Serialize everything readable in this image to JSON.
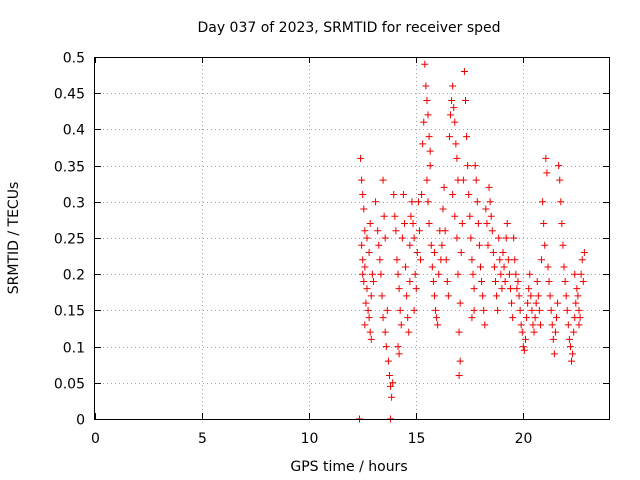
{
  "chart_data": {
    "type": "scatter",
    "title": "Day 037 of 2023, SRMTID for receiver sped",
    "xlabel": "GPS time / hours",
    "ylabel": "SRMTID / TECUs",
    "xlim": [
      0,
      24
    ],
    "ylim": [
      0,
      0.5
    ],
    "xticks": [
      0,
      5,
      10,
      15,
      20
    ],
    "yticks": [
      0,
      0.05,
      0.1,
      0.15,
      0.2,
      0.25,
      0.3,
      0.35,
      0.4,
      0.45,
      0.5
    ],
    "xtick_labels": [
      "0",
      "5",
      "10",
      "15",
      "20"
    ],
    "ytick_labels": [
      "0",
      "0.05",
      "0.1",
      "0.15",
      "0.2",
      "0.25",
      "0.3",
      "0.35",
      "0.4",
      "0.45",
      "0.5"
    ],
    "grid": true,
    "marker": "+",
    "color": "#ee0000",
    "series": [
      {
        "name": "SRMTID",
        "points": [
          [
            12.35,
            0.0
          ],
          [
            13.8,
            0.0
          ],
          [
            12.4,
            0.36
          ],
          [
            12.45,
            0.33
          ],
          [
            12.5,
            0.31
          ],
          [
            12.55,
            0.29
          ],
          [
            12.6,
            0.26
          ],
          [
            12.45,
            0.24
          ],
          [
            12.5,
            0.22
          ],
          [
            12.6,
            0.21
          ],
          [
            12.55,
            0.19
          ],
          [
            12.7,
            0.18
          ],
          [
            12.65,
            0.16
          ],
          [
            12.75,
            0.15
          ],
          [
            12.8,
            0.14
          ],
          [
            12.85,
            0.12
          ],
          [
            12.9,
            0.11
          ],
          [
            12.7,
            0.25
          ],
          [
            12.8,
            0.23
          ],
          [
            12.9,
            0.17
          ],
          [
            12.95,
            0.2
          ],
          [
            13.0,
            0.19
          ],
          [
            12.85,
            0.27
          ],
          [
            12.5,
            0.2
          ],
          [
            12.6,
            0.13
          ],
          [
            13.1,
            0.3
          ],
          [
            13.2,
            0.26
          ],
          [
            13.25,
            0.24
          ],
          [
            13.3,
            0.22
          ],
          [
            13.35,
            0.2
          ],
          [
            13.4,
            0.17
          ],
          [
            13.45,
            0.33
          ],
          [
            13.5,
            0.28
          ],
          [
            13.45,
            0.14
          ],
          [
            13.55,
            0.12
          ],
          [
            13.6,
            0.1
          ],
          [
            13.7,
            0.08
          ],
          [
            13.75,
            0.06
          ],
          [
            13.8,
            0.045
          ],
          [
            13.85,
            0.03
          ],
          [
            13.9,
            0.05
          ],
          [
            13.65,
            0.15
          ],
          [
            13.55,
            0.25
          ],
          [
            13.95,
            0.31
          ],
          [
            14.0,
            0.28
          ],
          [
            14.05,
            0.26
          ],
          [
            14.1,
            0.22
          ],
          [
            14.15,
            0.2
          ],
          [
            14.2,
            0.18
          ],
          [
            14.25,
            0.15
          ],
          [
            14.3,
            0.13
          ],
          [
            14.15,
            0.1
          ],
          [
            14.2,
            0.09
          ],
          [
            14.35,
            0.25
          ],
          [
            14.4,
            0.31
          ],
          [
            14.45,
            0.27
          ],
          [
            14.5,
            0.21
          ],
          [
            14.55,
            0.17
          ],
          [
            14.6,
            0.14
          ],
          [
            14.65,
            0.12
          ],
          [
            14.7,
            0.24
          ],
          [
            14.75,
            0.28
          ],
          [
            14.8,
            0.3
          ],
          [
            14.85,
            0.27
          ],
          [
            14.9,
            0.25
          ],
          [
            14.95,
            0.2
          ],
          [
            15.0,
            0.18
          ],
          [
            15.05,
            0.23
          ],
          [
            15.1,
            0.3
          ],
          [
            15.15,
            0.26
          ],
          [
            14.9,
            0.15
          ],
          [
            14.7,
            0.19
          ],
          [
            15.2,
            0.22
          ],
          [
            15.25,
            0.31
          ],
          [
            15.3,
            0.38
          ],
          [
            15.35,
            0.41
          ],
          [
            15.4,
            0.49
          ],
          [
            15.45,
            0.46
          ],
          [
            15.5,
            0.44
          ],
          [
            15.55,
            0.42
          ],
          [
            15.6,
            0.39
          ],
          [
            15.65,
            0.37
          ],
          [
            15.5,
            0.33
          ],
          [
            15.55,
            0.3
          ],
          [
            15.6,
            0.27
          ],
          [
            15.65,
            0.35
          ],
          [
            15.7,
            0.24
          ],
          [
            15.75,
            0.21
          ],
          [
            15.8,
            0.19
          ],
          [
            15.85,
            0.17
          ],
          [
            15.9,
            0.15
          ],
          [
            15.95,
            0.14
          ],
          [
            16.0,
            0.13
          ],
          [
            15.85,
            0.23
          ],
          [
            16.05,
            0.2
          ],
          [
            16.1,
            0.26
          ],
          [
            16.15,
            0.22
          ],
          [
            16.2,
            0.24
          ],
          [
            16.25,
            0.29
          ],
          [
            16.3,
            0.32
          ],
          [
            16.35,
            0.26
          ],
          [
            16.4,
            0.22
          ],
          [
            16.45,
            0.19
          ],
          [
            16.5,
            0.17
          ],
          [
            16.55,
            0.39
          ],
          [
            16.6,
            0.42
          ],
          [
            16.65,
            0.44
          ],
          [
            16.7,
            0.46
          ],
          [
            16.75,
            0.43
          ],
          [
            16.8,
            0.41
          ],
          [
            16.85,
            0.38
          ],
          [
            16.9,
            0.36
          ],
          [
            16.95,
            0.33
          ],
          [
            16.7,
            0.31
          ],
          [
            16.8,
            0.28
          ],
          [
            16.9,
            0.25
          ],
          [
            17.0,
            0.12
          ],
          [
            17.05,
            0.08
          ],
          [
            17.0,
            0.06
          ],
          [
            16.95,
            0.2
          ],
          [
            17.05,
            0.16
          ],
          [
            17.1,
            0.23
          ],
          [
            17.15,
            0.27
          ],
          [
            17.2,
            0.33
          ],
          [
            17.25,
            0.48
          ],
          [
            17.3,
            0.44
          ],
          [
            17.35,
            0.39
          ],
          [
            17.4,
            0.35
          ],
          [
            17.45,
            0.31
          ],
          [
            17.5,
            0.28
          ],
          [
            17.55,
            0.25
          ],
          [
            17.6,
            0.22
          ],
          [
            17.65,
            0.2
          ],
          [
            17.7,
            0.18
          ],
          [
            17.75,
            0.35
          ],
          [
            17.8,
            0.33
          ],
          [
            17.85,
            0.3
          ],
          [
            17.9,
            0.27
          ],
          [
            17.95,
            0.24
          ],
          [
            18.0,
            0.21
          ],
          [
            18.05,
            0.19
          ],
          [
            18.1,
            0.17
          ],
          [
            18.15,
            0.15
          ],
          [
            18.2,
            0.13
          ],
          [
            17.6,
            0.14
          ],
          [
            17.7,
            0.15
          ],
          [
            18.25,
            0.29
          ],
          [
            18.3,
            0.27
          ],
          [
            18.35,
            0.24
          ],
          [
            18.4,
            0.32
          ],
          [
            18.45,
            0.3
          ],
          [
            18.5,
            0.28
          ],
          [
            18.55,
            0.26
          ],
          [
            18.6,
            0.23
          ],
          [
            18.65,
            0.21
          ],
          [
            18.7,
            0.19
          ],
          [
            18.75,
            0.17
          ],
          [
            18.8,
            0.15
          ],
          [
            18.85,
            0.25
          ],
          [
            18.9,
            0.22
          ],
          [
            18.95,
            0.2
          ],
          [
            19.0,
            0.18
          ],
          [
            19.05,
            0.23
          ],
          [
            19.1,
            0.21
          ],
          [
            19.15,
            0.19
          ],
          [
            19.2,
            0.25
          ],
          [
            19.25,
            0.27
          ],
          [
            19.3,
            0.22
          ],
          [
            19.35,
            0.2
          ],
          [
            19.4,
            0.18
          ],
          [
            19.45,
            0.16
          ],
          [
            19.5,
            0.14
          ],
          [
            19.55,
            0.25
          ],
          [
            19.6,
            0.22
          ],
          [
            19.65,
            0.2
          ],
          [
            19.7,
            0.18
          ],
          [
            19.75,
            0.19
          ],
          [
            19.8,
            0.17
          ],
          [
            19.85,
            0.15
          ],
          [
            19.9,
            0.13
          ],
          [
            19.95,
            0.12
          ],
          [
            20.0,
            0.1
          ],
          [
            20.05,
            0.095
          ],
          [
            20.1,
            0.11
          ],
          [
            20.15,
            0.14
          ],
          [
            20.2,
            0.16
          ],
          [
            20.25,
            0.18
          ],
          [
            20.3,
            0.2
          ],
          [
            20.35,
            0.17
          ],
          [
            20.4,
            0.15
          ],
          [
            20.45,
            0.13
          ],
          [
            20.5,
            0.12
          ],
          [
            20.55,
            0.14
          ],
          [
            20.6,
            0.16
          ],
          [
            20.65,
            0.19
          ],
          [
            20.7,
            0.17
          ],
          [
            20.75,
            0.15
          ],
          [
            20.8,
            0.13
          ],
          [
            20.85,
            0.22
          ],
          [
            20.9,
            0.3
          ],
          [
            20.95,
            0.27
          ],
          [
            21.0,
            0.24
          ],
          [
            21.05,
            0.36
          ],
          [
            21.1,
            0.34
          ],
          [
            21.15,
            0.21
          ],
          [
            21.2,
            0.19
          ],
          [
            21.25,
            0.17
          ],
          [
            21.3,
            0.15
          ],
          [
            21.35,
            0.13
          ],
          [
            21.4,
            0.11
          ],
          [
            21.45,
            0.09
          ],
          [
            21.5,
            0.12
          ],
          [
            21.55,
            0.14
          ],
          [
            21.6,
            0.16
          ],
          [
            21.65,
            0.35
          ],
          [
            21.7,
            0.33
          ],
          [
            21.75,
            0.3
          ],
          [
            21.8,
            0.27
          ],
          [
            21.85,
            0.24
          ],
          [
            21.9,
            0.21
          ],
          [
            21.95,
            0.19
          ],
          [
            22.0,
            0.17
          ],
          [
            22.05,
            0.15
          ],
          [
            22.1,
            0.13
          ],
          [
            22.15,
            0.11
          ],
          [
            22.2,
            0.1
          ],
          [
            22.25,
            0.08
          ],
          [
            22.3,
            0.09
          ],
          [
            22.35,
            0.12
          ],
          [
            22.4,
            0.14
          ],
          [
            22.45,
            0.16
          ],
          [
            22.5,
            0.18
          ],
          [
            22.55,
            0.17
          ],
          [
            22.6,
            0.15
          ],
          [
            22.65,
            0.14
          ],
          [
            22.7,
            0.2
          ],
          [
            22.75,
            0.22
          ],
          [
            22.8,
            0.19
          ],
          [
            22.85,
            0.23
          ],
          [
            22.6,
            0.13
          ],
          [
            22.4,
            0.2
          ]
        ]
      }
    ]
  }
}
